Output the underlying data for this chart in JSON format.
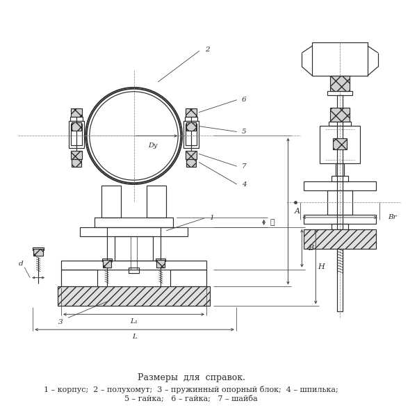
{
  "background_color": "#ffffff",
  "line_color": "#2a2a2a",
  "title_text": "Размеры  для  справок.",
  "legend_line1": "1 – корпус;  2 – полухомут;  3 – пружинный опорный блок;  4 – шпилька;",
  "legend_line2": "5 – гайка;   6 – гайка;   7 – шайба"
}
